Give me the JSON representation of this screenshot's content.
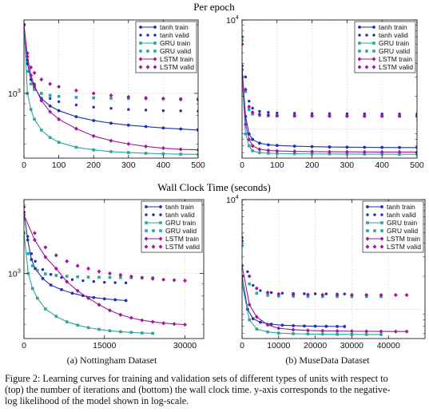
{
  "figure": {
    "row_titles": [
      "Per epoch",
      "Wall Clock Time (seconds)"
    ],
    "subcaptions": [
      "(a) Nottingham Dataset",
      "(b) MuseData Dataset"
    ],
    "caption": [
      "Figure 2: Learning curves for training and validation sets of different types of units with respect to",
      "(top) the number of iterations and (bottom) the wall clock time. y-axis corresponds to the negative-",
      "log likelihood of the model shown in log-scale."
    ]
  },
  "colors": {
    "tanh": "#1f2fb4",
    "GRU": "#2aa79b",
    "LSTM": "#a0169b"
  },
  "chart_data": [
    {
      "type": "line",
      "panel": "top-left",
      "title": "Per epoch",
      "yscale": "log",
      "ylim": [
        520,
        2100
      ],
      "xlim": [
        0,
        500
      ],
      "xticks": [
        0,
        100,
        200,
        300,
        400,
        500
      ],
      "xtick_labels": [
        "0",
        "100",
        "200",
        "300",
        "400",
        "500"
      ],
      "yticks": [
        1000
      ],
      "ytick_labels": [
        "10^3"
      ],
      "legend": "top-right",
      "grid": true,
      "series": [
        {
          "name": "tanh train",
          "x": [
            0,
            10,
            20,
            30,
            50,
            75,
            100,
            150,
            200,
            250,
            300,
            350,
            400,
            450,
            500
          ],
          "y": [
            2000,
            1350,
            1150,
            1060,
            950,
            880,
            840,
            790,
            760,
            740,
            725,
            715,
            705,
            698,
            690
          ]
        },
        {
          "name": "tanh valid",
          "x": [
            0,
            10,
            20,
            30,
            50,
            75,
            100,
            150,
            200,
            250,
            300,
            350,
            400,
            450,
            500
          ],
          "y": [
            2000,
            1400,
            1200,
            1100,
            1000,
            950,
            920,
            890,
            870,
            860,
            850,
            845,
            840,
            838,
            835
          ]
        },
        {
          "name": "GRU train",
          "x": [
            0,
            10,
            20,
            30,
            50,
            75,
            100,
            150,
            200,
            250,
            300,
            350,
            400,
            450,
            500
          ],
          "y": [
            2000,
            1000,
            850,
            770,
            690,
            640,
            610,
            580,
            565,
            555,
            550,
            546,
            543,
            541,
            540
          ]
        },
        {
          "name": "GRU valid",
          "x": [
            0,
            10,
            20,
            30,
            50,
            75,
            100,
            150,
            200,
            250,
            300,
            350,
            400,
            450,
            500
          ],
          "y": [
            2000,
            1250,
            1100,
            1040,
            1000,
            980,
            970,
            960,
            955,
            952,
            950,
            948,
            947,
            946,
            945
          ]
        },
        {
          "name": "LSTM train",
          "x": [
            0,
            10,
            20,
            30,
            50,
            75,
            100,
            150,
            200,
            250,
            300,
            350,
            400,
            450,
            500
          ],
          "y": [
            2000,
            1450,
            1200,
            1080,
            930,
            830,
            770,
            700,
            650,
            620,
            600,
            585,
            575,
            568,
            565
          ]
        },
        {
          "name": "LSTM valid",
          "x": [
            0,
            10,
            20,
            30,
            50,
            75,
            100,
            150,
            200,
            250,
            300,
            350,
            400,
            450,
            500
          ],
          "y": [
            2000,
            1500,
            1300,
            1230,
            1150,
            1100,
            1070,
            1030,
            1000,
            980,
            965,
            955,
            948,
            942,
            938
          ]
        }
      ]
    },
    {
      "type": "line",
      "panel": "top-right",
      "title": "Per epoch",
      "yscale": "log",
      "ylim": [
        540,
        10000
      ],
      "xlim": [
        0,
        500
      ],
      "xticks": [
        0,
        100,
        200,
        300,
        400,
        500
      ],
      "xtick_labels": [
        "0",
        "100",
        "200",
        "300",
        "400",
        "500"
      ],
      "yticks": [
        10000
      ],
      "ytick_labels": [
        "10^4"
      ],
      "legend": "top-right",
      "grid": true,
      "series": [
        {
          "name": "tanh train",
          "x": [
            0,
            10,
            20,
            30,
            50,
            75,
            100,
            150,
            200,
            250,
            300,
            350,
            400,
            450,
            500
          ],
          "y": [
            3500,
            1300,
            900,
            800,
            740,
            715,
            705,
            695,
            688,
            683,
            680,
            678,
            676,
            675,
            674
          ]
        },
        {
          "name": "tanh valid",
          "x": [
            0,
            10,
            20,
            30,
            50,
            75,
            100,
            150,
            200,
            250,
            300,
            350,
            400,
            450,
            500
          ],
          "y": [
            7000,
            3000,
            1800,
            1550,
            1450,
            1420,
            1400,
            1390,
            1385,
            1380,
            1378,
            1376,
            1374,
            1373,
            1372
          ]
        },
        {
          "name": "GRU train",
          "x": [
            0,
            10,
            20,
            30,
            50,
            75,
            100,
            150,
            200,
            250,
            300,
            350,
            400,
            450,
            500
          ],
          "y": [
            3000,
            900,
            700,
            630,
            605,
            598,
            595,
            592,
            590,
            589,
            588,
            587,
            587,
            586,
            586
          ]
        },
        {
          "name": "GRU valid",
          "x": [
            0,
            10,
            20,
            30,
            50,
            75,
            100,
            150,
            200,
            250,
            300,
            350,
            400,
            450,
            500
          ],
          "y": [
            6500,
            2200,
            1500,
            1370,
            1330,
            1320,
            1315,
            1312,
            1310,
            1309,
            1308,
            1308,
            1307,
            1307,
            1306
          ]
        },
        {
          "name": "LSTM train",
          "x": [
            0,
            10,
            20,
            30,
            50,
            75,
            100,
            150,
            200,
            250,
            300,
            350,
            400,
            450,
            500
          ],
          "y": [
            3800,
            1100,
            800,
            700,
            650,
            635,
            628,
            622,
            619,
            617,
            616,
            615,
            614,
            614,
            613
          ]
        },
        {
          "name": "LSTM valid",
          "x": [
            0,
            10,
            20,
            30,
            50,
            75,
            100,
            150,
            200,
            250,
            300,
            350,
            400,
            450,
            500
          ],
          "y": [
            6000,
            2300,
            1600,
            1420,
            1360,
            1340,
            1330,
            1325,
            1322,
            1320,
            1319,
            1318,
            1317,
            1317,
            1316
          ]
        }
      ]
    },
    {
      "type": "line",
      "panel": "bottom-left",
      "title": "Wall Clock Time (seconds)",
      "yscale": "log",
      "ylim": [
        520,
        2100
      ],
      "xlim": [
        0,
        33500
      ],
      "xticks": [
        0,
        15000,
        30000
      ],
      "xtick_labels": [
        "0",
        "15000",
        "30000"
      ],
      "yticks": [
        1000
      ],
      "ytick_labels": [
        "10^3"
      ],
      "legend": "top-right",
      "grid": true,
      "series": [
        {
          "name": "tanh train",
          "x": [
            0,
            700,
            1400,
            2100,
            3500,
            5000,
            7000,
            9000,
            11000,
            13000,
            15000,
            17000,
            19000
          ],
          "y": [
            1850,
            1400,
            1150,
            1050,
            950,
            890,
            850,
            820,
            800,
            785,
            775,
            768,
            762
          ]
        },
        {
          "name": "tanh valid",
          "x": [
            0,
            700,
            1400,
            2100,
            3500,
            5000,
            7000,
            9000,
            11000,
            13000,
            15000,
            17000,
            19000
          ],
          "y": [
            1850,
            1450,
            1220,
            1130,
            1040,
            990,
            960,
            940,
            930,
            922,
            915,
            912,
            910
          ]
        },
        {
          "name": "GRU train",
          "x": [
            0,
            800,
            1600,
            2500,
            4000,
            6000,
            8000,
            10000,
            12000,
            14000,
            16000,
            18000,
            20000,
            22000,
            24000
          ],
          "y": [
            1500,
            1000,
            860,
            780,
            700,
            650,
            615,
            595,
            580,
            570,
            562,
            557,
            553,
            550,
            548
          ]
        },
        {
          "name": "GRU valid",
          "x": [
            0,
            800,
            1600,
            2500,
            4000,
            6000,
            8000,
            10000,
            12000,
            14000,
            16000,
            18000,
            20000,
            22000,
            24000
          ],
          "y": [
            1500,
            1220,
            1080,
            1030,
            995,
            980,
            972,
            967,
            964,
            962,
            961,
            960,
            959,
            958,
            958
          ]
        },
        {
          "name": "LSTM train",
          "x": [
            0,
            2000,
            4000,
            6000,
            8000,
            10000,
            12000,
            14000,
            16000,
            18000,
            20000,
            22000,
            24000,
            26000,
            28000,
            30000
          ],
          "y": [
            1800,
            1400,
            1180,
            1050,
            920,
            840,
            780,
            730,
            690,
            660,
            640,
            625,
            615,
            607,
            602,
            598
          ]
        },
        {
          "name": "LSTM valid",
          "x": [
            0,
            2000,
            4000,
            6000,
            8000,
            10000,
            12000,
            14000,
            16000,
            18000,
            20000,
            22000,
            24000,
            26000,
            28000,
            30000
          ],
          "y": [
            1950,
            1500,
            1300,
            1200,
            1130,
            1080,
            1050,
            1020,
            1000,
            985,
            970,
            958,
            948,
            940,
            935,
            930
          ]
        }
      ]
    },
    {
      "type": "line",
      "panel": "bottom-right",
      "title": "Wall Clock Time (seconds)",
      "yscale": "log",
      "ylim": [
        540,
        10000
      ],
      "xlim": [
        0,
        50000
      ],
      "xticks": [
        0,
        10000,
        20000,
        30000,
        40000
      ],
      "xtick_labels": [
        "0",
        "10000",
        "20000",
        "30000",
        "40000"
      ],
      "yticks": [
        10000
      ],
      "ytick_labels": [
        "10^4"
      ],
      "legend": "top-right",
      "grid": true,
      "series": [
        {
          "name": "tanh train",
          "x": [
            0,
            1500,
            3000,
            5000,
            8000,
            11000,
            14000,
            17000,
            20000,
            23000,
            26000,
            28000
          ],
          "y": [
            2000,
            1000,
            820,
            760,
            730,
            715,
            708,
            703,
            700,
            698,
            696,
            695
          ]
        },
        {
          "name": "tanh valid",
          "x": [
            0,
            1500,
            3000,
            5000,
            8000,
            11000,
            14000,
            17000,
            20000,
            23000,
            26000,
            28000
          ],
          "y": [
            4500,
            2200,
            1650,
            1480,
            1420,
            1400,
            1390,
            1385,
            1382,
            1380,
            1378,
            1377
          ]
        },
        {
          "name": "GRU train",
          "x": [
            0,
            2000,
            4000,
            7000,
            10000,
            14000,
            18000,
            22000,
            26000,
            30000,
            34000,
            38000
          ],
          "y": [
            1700,
            800,
            660,
            620,
            605,
            598,
            594,
            592,
            590,
            589,
            588,
            588
          ]
        },
        {
          "name": "GRU valid",
          "x": [
            0,
            2000,
            4000,
            7000,
            10000,
            14000,
            18000,
            22000,
            26000,
            30000,
            34000,
            38000
          ],
          "y": [
            3800,
            1700,
            1400,
            1340,
            1320,
            1312,
            1308,
            1306,
            1305,
            1304,
            1304,
            1303
          ]
        },
        {
          "name": "LSTM train",
          "x": [
            0,
            2000,
            4000,
            7000,
            10000,
            14000,
            18000,
            22000,
            26000,
            30000,
            34000,
            38000,
            42000,
            45000
          ],
          "y": [
            2500,
            1100,
            850,
            720,
            670,
            650,
            640,
            635,
            632,
            630,
            628,
            627,
            626,
            626
          ]
        },
        {
          "name": "LSTM valid",
          "x": [
            0,
            2000,
            4000,
            7000,
            10000,
            14000,
            18000,
            22000,
            26000,
            30000,
            34000,
            38000,
            42000,
            45000
          ],
          "y": [
            4200,
            2000,
            1550,
            1420,
            1380,
            1365,
            1358,
            1354,
            1352,
            1350,
            1349,
            1348,
            1347,
            1347
          ]
        }
      ]
    }
  ]
}
